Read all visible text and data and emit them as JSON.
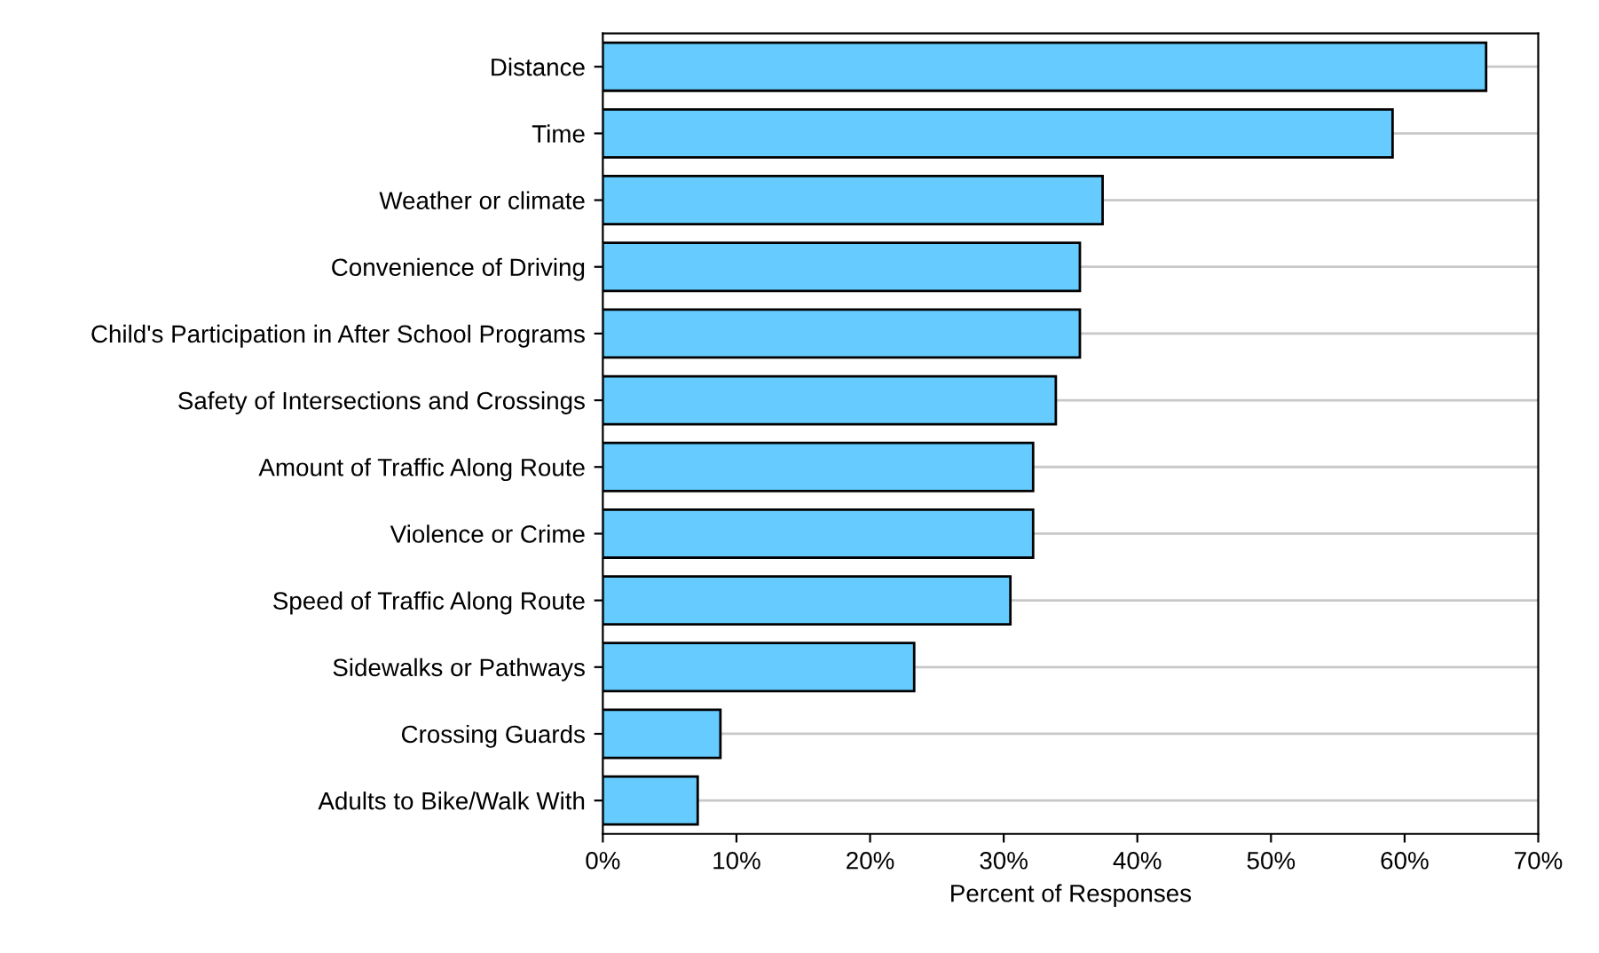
{
  "chart_data": {
    "type": "bar",
    "orientation": "horizontal",
    "xlabel": "Percent of Responses",
    "categories": [
      "Distance",
      "Time",
      "Weather or climate",
      "Convenience of Driving",
      "Child's Participation in After School Programs",
      "Safety of Intersections and Crossings",
      "Amount of Traffic Along Route",
      "Violence or Crime",
      "Speed of Traffic Along Route",
      "Sidewalks or Pathways",
      "Crossing Guards",
      "Adults to Bike/Walk With"
    ],
    "values": [
      66.1,
      59.1,
      37.4,
      35.7,
      35.7,
      33.9,
      32.2,
      32.2,
      30.5,
      23.3,
      8.8,
      7.1
    ],
    "color": "#66ccff",
    "xlim": [
      0,
      70
    ],
    "xticks": [
      {
        "value": 0,
        "label": "0%"
      },
      {
        "value": 10,
        "label": "10%"
      },
      {
        "value": 20,
        "label": "20%"
      },
      {
        "value": 30,
        "label": "30%"
      },
      {
        "value": 40,
        "label": "40%"
      },
      {
        "value": 50,
        "label": "50%"
      },
      {
        "value": 60,
        "label": "60%"
      },
      {
        "value": 70,
        "label": "70%"
      }
    ],
    "grid": "y",
    "legend": false
  }
}
